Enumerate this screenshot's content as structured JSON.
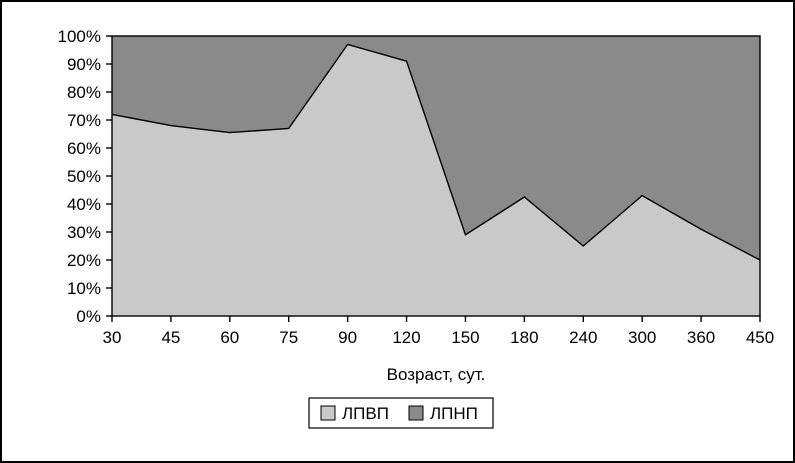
{
  "chart_data": {
    "type": "area",
    "stacking": "percent",
    "title": "",
    "xlabel": "Возраст, сут.",
    "ylabel": "",
    "categories": [
      "30",
      "45",
      "60",
      "75",
      "90",
      "120",
      "150",
      "180",
      "240",
      "300",
      "360",
      "450"
    ],
    "series": [
      {
        "name": "ЛПВП",
        "color": "#c9c9c9",
        "values": [
          72,
          68,
          65.5,
          67,
          97,
          91,
          29,
          42.5,
          25,
          43,
          31,
          20
        ]
      },
      {
        "name": "ЛПНП",
        "color": "#8a8a8a",
        "values": [
          28,
          32,
          34.5,
          33,
          3,
          9,
          71,
          57.5,
          75,
          57,
          69,
          80
        ]
      }
    ],
    "ylim": [
      0,
      100
    ],
    "ytick_step": 10,
    "ytick_labels": [
      "0%",
      "10%",
      "20%",
      "30%",
      "40%",
      "50%",
      "60%",
      "70%",
      "80%",
      "90%",
      "100%"
    ],
    "grid": false,
    "legend_position": "bottom",
    "colors": {
      "plot_border": "#000000",
      "boundary_line": "#000000",
      "background": "#ffffff",
      "text": "#000000"
    }
  }
}
